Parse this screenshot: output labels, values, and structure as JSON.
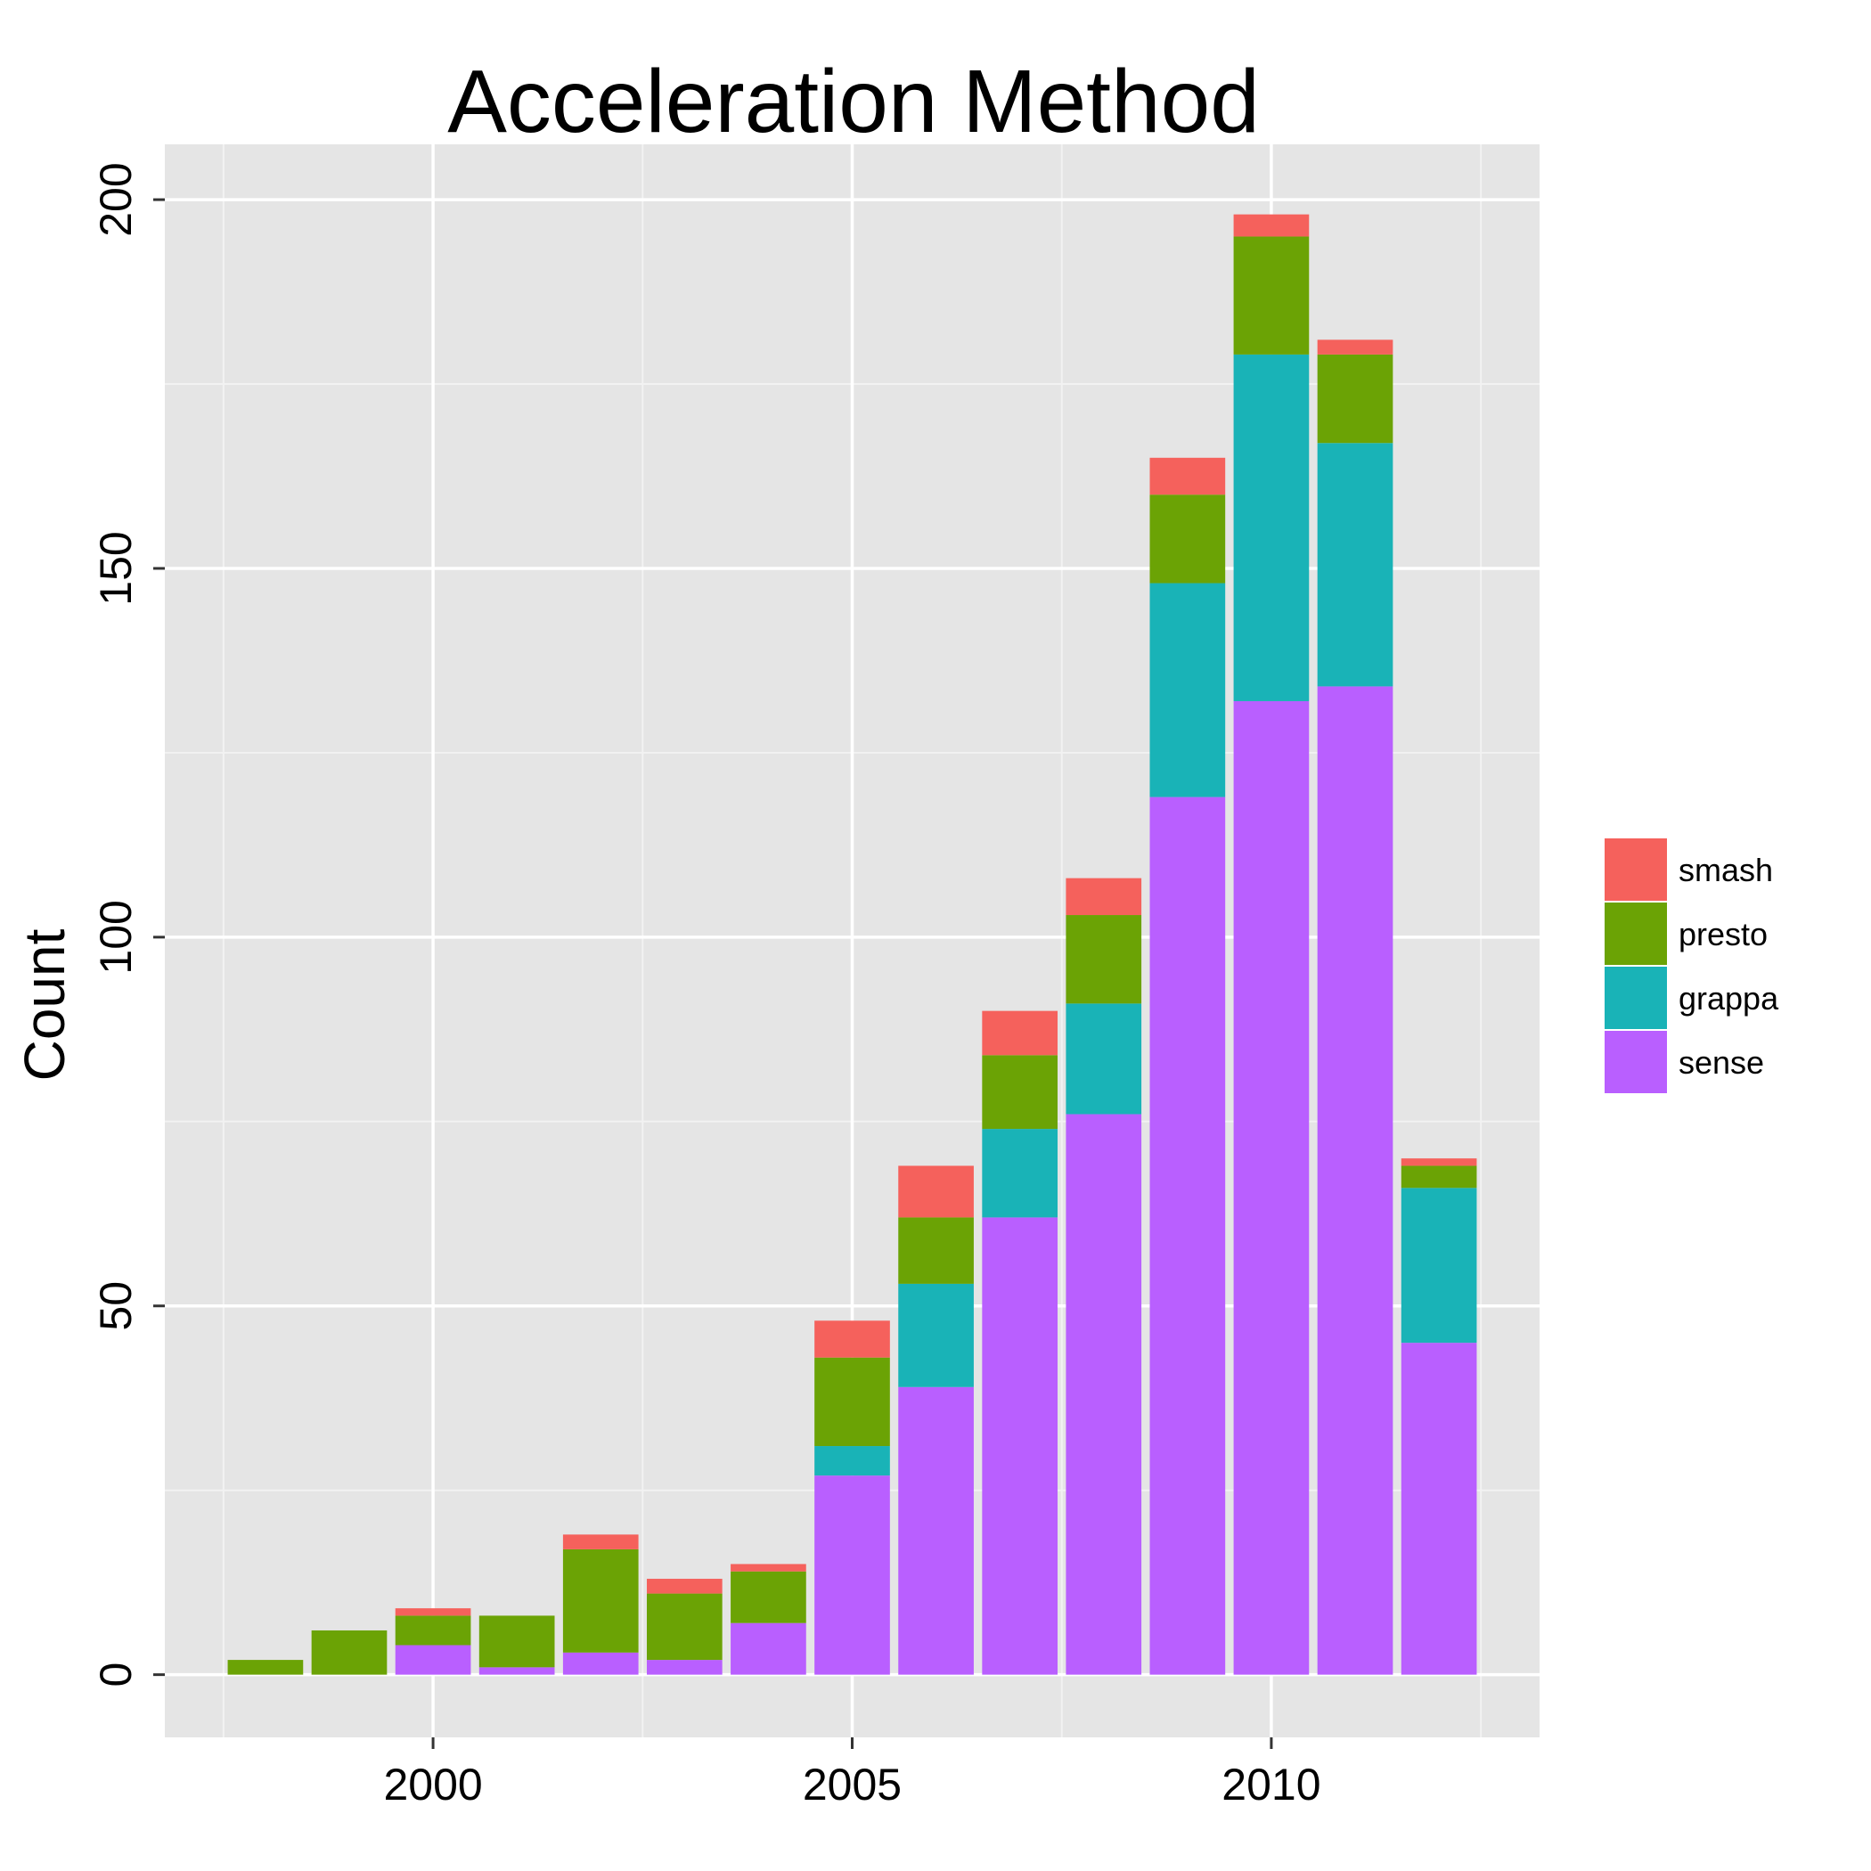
{
  "chart_data": {
    "type": "bar",
    "stacked": true,
    "title": "Acceleration Method",
    "xlabel": "",
    "ylabel": "Count",
    "x": [
      1998,
      1999,
      2000,
      2001,
      2002,
      2003,
      2004,
      2005,
      2006,
      2007,
      2008,
      2009,
      2010,
      2011,
      2012
    ],
    "xlim": [
      1996.8,
      2013.2
    ],
    "ylim": [
      -8.5,
      207.5
    ],
    "x_ticks": [
      2000,
      2005,
      2010
    ],
    "y_ticks": [
      0,
      50,
      100,
      150,
      200
    ],
    "grid": true,
    "legend": "right",
    "series": [
      {
        "name": "sense",
        "color": "#B95FFF",
        "values": [
          0,
          0,
          4,
          1,
          3,
          2,
          7,
          27,
          39,
          62,
          76,
          119,
          132,
          134,
          45
        ]
      },
      {
        "name": "grappa",
        "color": "#19B3B7",
        "values": [
          0,
          0,
          0,
          0,
          0,
          0,
          0,
          4,
          14,
          12,
          15,
          29,
          47,
          33,
          21
        ]
      },
      {
        "name": "presto",
        "color": "#6BA305",
        "values": [
          2,
          6,
          4,
          7,
          14,
          9,
          7,
          12,
          9,
          10,
          12,
          12,
          16,
          12,
          3
        ]
      },
      {
        "name": "smash",
        "color": "#F5615C",
        "values": [
          0,
          0,
          1,
          0,
          2,
          2,
          1,
          5,
          7,
          6,
          5,
          5,
          3,
          2,
          1
        ]
      }
    ],
    "legend_order": [
      "smash",
      "presto",
      "grappa",
      "sense"
    ]
  }
}
